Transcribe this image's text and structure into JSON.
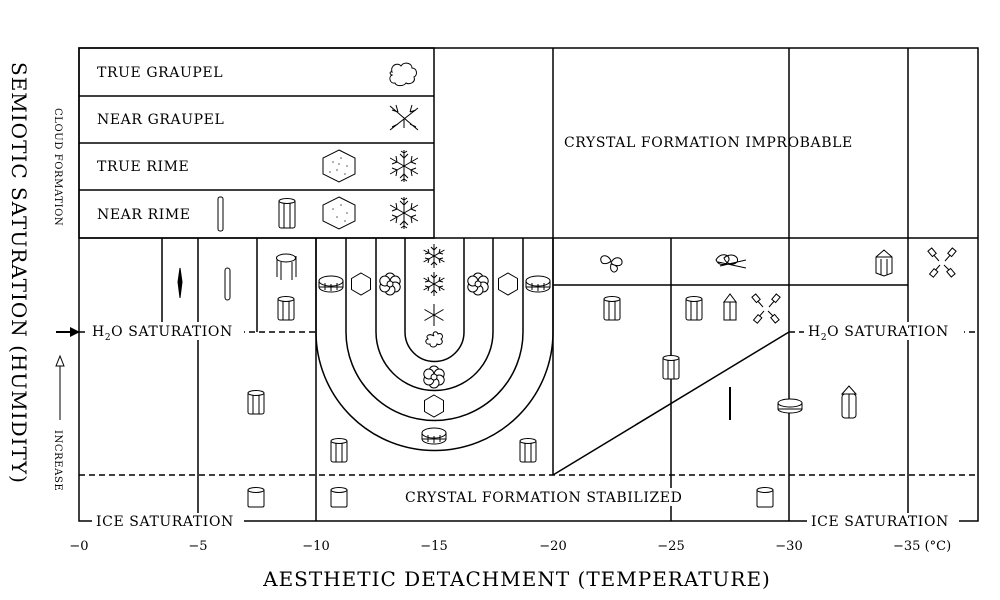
{
  "y_axis": {
    "title": "SEMIOTIC SATURATION (HUMIDITY)",
    "upper_label": "CLOUD FORMATION",
    "lower_label": "INCREASE"
  },
  "x_axis": {
    "title": "AESTHETIC DETACHMENT (TEMPERATURE)",
    "ticks": [
      "−0",
      "−5",
      "−10",
      "−15",
      "−20",
      "−25",
      "−30",
      "−35 (°C)"
    ]
  },
  "legend": {
    "rows": [
      {
        "label": "TRUE GRAUPEL",
        "icons": [
          "graupel-cloud-icon"
        ]
      },
      {
        "label": "NEAR GRAUPEL",
        "icons": [
          "near-graupel-icon"
        ]
      },
      {
        "label": "TRUE RIME",
        "icons": [
          "rimed-hexagon-icon",
          "rimed-snowflake-icon"
        ]
      },
      {
        "label": "NEAR RIME",
        "icons": [
          "rimed-needle-icon",
          "rimed-column-icon",
          "rimed-hexagon-icon",
          "rimed-snowflake-icon"
        ]
      }
    ]
  },
  "regions": {
    "improbable": "CRYSTAL FORMATION IMPROBABLE",
    "stabilized": "CRYSTAL FORMATION STABILIZED",
    "h2o_left": "H",
    "h2o_left_sub": "2",
    "h2o_left_rest": "O SATURATION",
    "h2o_right": "H",
    "h2o_right_sub": "2",
    "h2o_right_rest": "O SATURATION",
    "ice_left": "ICE SATURATION",
    "ice_right": "ICE SATURATION"
  },
  "crystal_icons": [
    "needle-icon",
    "needle-icon",
    "hollow-column-icon",
    "column-icon",
    "column-icon",
    "thick-plate-icon",
    "hexagonal-plate-icon",
    "sector-plate-icon",
    "dendrite-icon",
    "stellar-dendrite-icon",
    "needle-star-icon",
    "hexagonal-plate-icon",
    "sector-plate-icon",
    "thick-plate-icon",
    "scroll-plate-icon",
    "bullet-rosette-icon",
    "column-icon",
    "capped-column-icon",
    "bullet-rosette-icon",
    "prism-icon",
    "crossed-plate-icon",
    "column-icon",
    "disk-icon",
    "bullet-icon",
    "thin-needle-icon"
  ]
}
